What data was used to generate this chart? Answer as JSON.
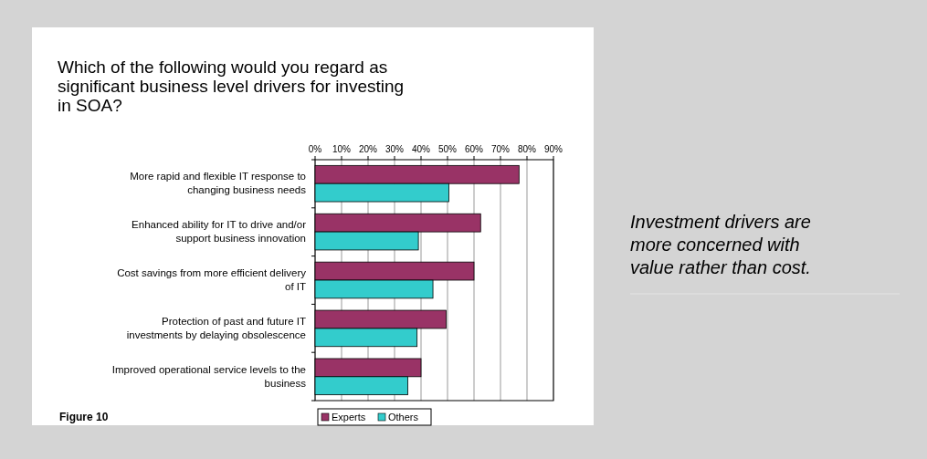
{
  "chart_data": {
    "type": "bar",
    "orientation": "horizontal",
    "title": "Which of the following would you regard as significant business level drivers for investing in SOA?",
    "categories": [
      "More rapid and flexible IT response to changing business needs",
      "Enhanced ability for IT to drive and/or support business innovation",
      "Cost savings from more efficient delivery of IT",
      "Protection of past and future IT investments by delaying obsolescence",
      "Improved operational service levels to the business"
    ],
    "series": [
      {
        "name": "Experts",
        "color": "#993366",
        "values": [
          77,
          62.5,
          60,
          49.5,
          40
        ]
      },
      {
        "name": "Others",
        "color": "#33cccc",
        "values": [
          50.5,
          39,
          44.5,
          38.5,
          35
        ]
      }
    ],
    "xlim": [
      0,
      90
    ],
    "xticks": [
      {
        "value": 0,
        "label": "0%"
      },
      {
        "value": 10,
        "label": "10%"
      },
      {
        "value": 20,
        "label": "20%"
      },
      {
        "value": 30,
        "label": "30%"
      },
      {
        "value": 40,
        "label": "40%"
      },
      {
        "value": 50,
        "label": "50%"
      },
      {
        "value": 60,
        "label": "60%"
      },
      {
        "value": 70,
        "label": "70%"
      },
      {
        "value": 80,
        "label": "80%"
      },
      {
        "value": 90,
        "label": "90%"
      }
    ],
    "grid": "x",
    "legend": "bottom",
    "annotations": [
      "Figure 10",
      "Investment drivers are more concerned with value rather than cost."
    ]
  }
}
